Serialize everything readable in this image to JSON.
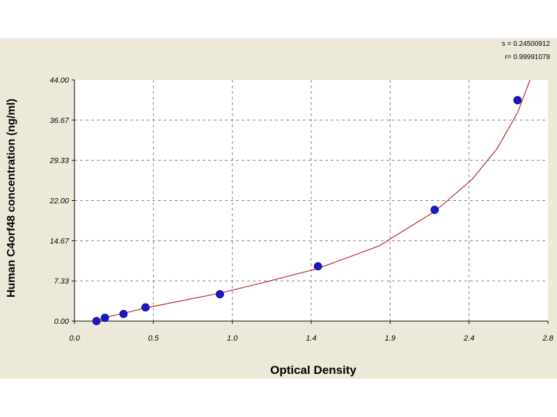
{
  "chart_data": {
    "type": "scatter",
    "title": "",
    "xlabel": "Optical Density",
    "ylabel": "Human C4orf48 concentration (ng/ml)",
    "xlim": [
      0.0,
      2.8
    ],
    "ylim": [
      0.0,
      44.0
    ],
    "x_tick_labels": [
      "0.0",
      "0.5",
      "1.0",
      "1.4",
      "1.9",
      "2.4",
      "2.8"
    ],
    "y_tick_labels": [
      "0.00",
      "7.33",
      "14.67",
      "22.00",
      "29.33",
      "36.67",
      "44.00"
    ],
    "grid": true,
    "stats": {
      "s": "s = 0.24500912",
      "r": "r= 0.99991078"
    },
    "points": {
      "x": [
        0.13,
        0.18,
        0.29,
        0.42,
        0.86,
        1.44,
        2.13,
        2.62
      ],
      "y": [
        0.0,
        0.6,
        1.3,
        2.5,
        4.9,
        10.0,
        20.3,
        40.3
      ]
    },
    "fit_curve": {
      "x": [
        0.08,
        0.13,
        0.2,
        0.3,
        0.42,
        0.6,
        0.86,
        1.1,
        1.44,
        1.8,
        2.13,
        2.35,
        2.5,
        2.62,
        2.7
      ],
      "y": [
        -0.4,
        0.1,
        0.8,
        1.5,
        2.4,
        3.5,
        5.1,
        6.9,
        9.6,
        13.7,
        20.0,
        25.8,
        31.5,
        38.0,
        44.5
      ]
    },
    "colors": {
      "point": "#1c17c8",
      "curve": "#b5212a",
      "grid": "#808080",
      "background": "#ece9d8"
    }
  }
}
